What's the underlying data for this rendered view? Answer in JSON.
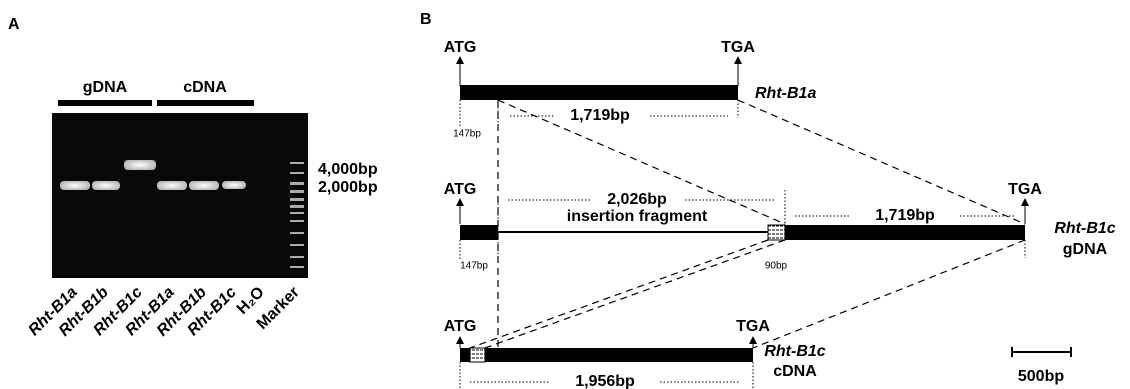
{
  "panel_a": {
    "label": "A",
    "groups": [
      "gDNA",
      "cDNA"
    ],
    "lanes": [
      "Rht-B1a",
      "Rht-B1b",
      "Rht-B1c",
      "Rht-B1a",
      "Rht-B1b",
      "Rht-B1c",
      "H₂O",
      "Marker"
    ],
    "marker_labels": [
      "4,000bp",
      "2,000bp"
    ]
  },
  "panel_b": {
    "label": "B",
    "rows": [
      {
        "start": "ATG",
        "stop": "TGA",
        "name": "Rht-B1a",
        "length": "1,719bp",
        "offset": "147bp"
      },
      {
        "start": "ATG",
        "stop": "TGA",
        "name": "Rht-B1c",
        "kind": "gDNA",
        "insertion_length": "2,026bp",
        "insertion_label": "insertion fragment",
        "length": "1,719bp",
        "offset": "147bp",
        "junction": "90bp"
      },
      {
        "start": "ATG",
        "stop": "TGA",
        "name": "Rht-B1c",
        "kind": "cDNA",
        "length": "1,956bp"
      }
    ],
    "scale": "500bp"
  }
}
